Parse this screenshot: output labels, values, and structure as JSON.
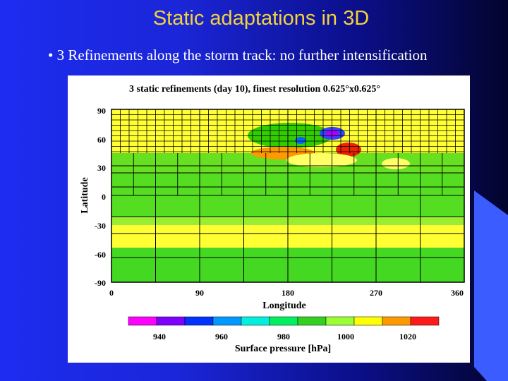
{
  "slide": {
    "title": "Static adaptations in 3D",
    "bullet": "• 3 Refinements along the storm track: no further intensification"
  },
  "figure": {
    "title": "3 static refinements (day 10), finest resolution 0.625°x0.625°",
    "y_axis": {
      "label": "Latitude",
      "ticks": [
        "90",
        "60",
        "30",
        "0",
        "-30",
        "-60",
        "-90"
      ]
    },
    "x_axis": {
      "label": "Longitude",
      "ticks": [
        "0",
        "90",
        "180",
        "270",
        "360"
      ]
    },
    "colorbar": {
      "label": "Surface pressure [hPa]",
      "tick_labels": [
        "940",
        "960",
        "980",
        "1000",
        "1020"
      ],
      "colors": [
        "#ff00ff",
        "#8000ff",
        "#0033ff",
        "#0099ff",
        "#00f0e0",
        "#00f060",
        "#33d020",
        "#99ff33",
        "#ffff00",
        "#ff9900",
        "#ff1a1a"
      ]
    }
  }
}
